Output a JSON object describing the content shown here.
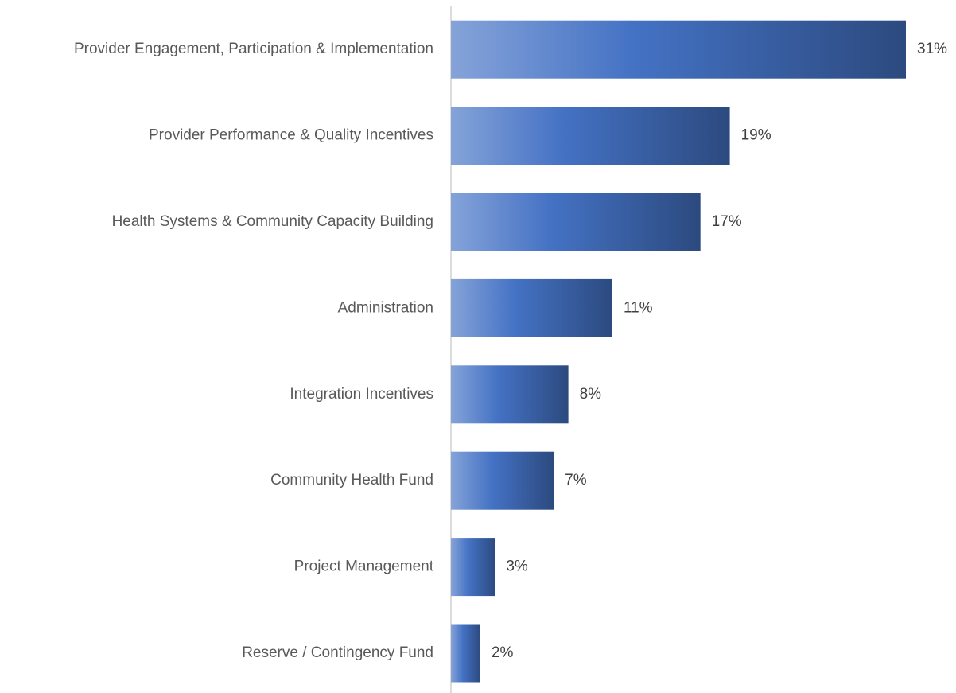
{
  "chart_data": {
    "type": "bar",
    "orientation": "horizontal",
    "categories": [
      "Provider Engagement, Participation & Implementation",
      "Provider Performance & Quality Incentives",
      "Health Systems & Community Capacity Building",
      "Administration",
      "Integration Incentives",
      "Community Health Fund",
      "Project Management",
      "Reserve / Contingency Fund"
    ],
    "values": [
      31,
      19,
      17,
      11,
      8,
      7,
      3,
      2
    ],
    "value_labels": [
      "31%",
      "19%",
      "17%",
      "11%",
      "8%",
      "7%",
      "3%",
      "2%"
    ],
    "color": "#4472c4"
  }
}
